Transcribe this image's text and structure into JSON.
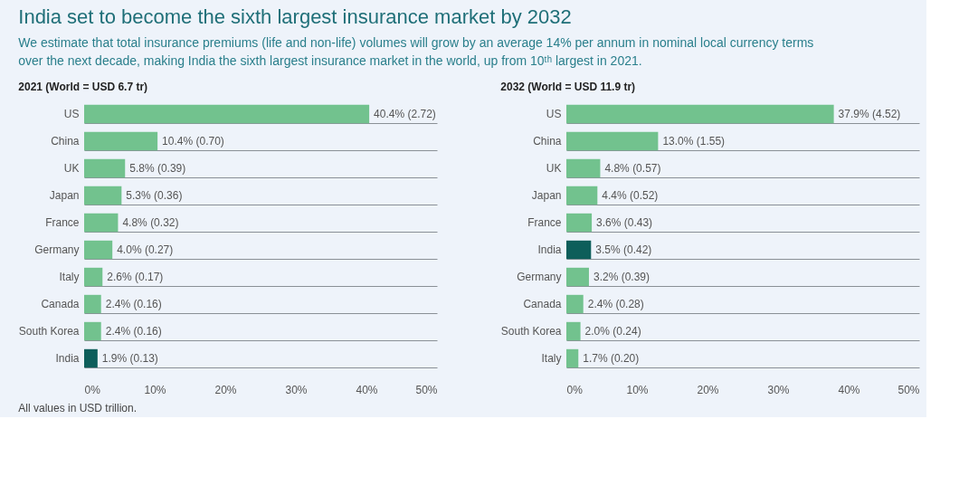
{
  "chart_data": [
    {
      "type": "bar",
      "orientation": "horizontal",
      "title": "2021 (World = USD 6.7 tr)",
      "categories": [
        "US",
        "China",
        "UK",
        "Japan",
        "France",
        "Germany",
        "Italy",
        "Canada",
        "South Korea",
        "India"
      ],
      "values": [
        40.4,
        10.4,
        5.8,
        5.3,
        4.8,
        4.0,
        2.6,
        2.4,
        2.4,
        1.9
      ],
      "colors": [
        "#72c28e",
        "#72c28e",
        "#72c28e",
        "#72c28e",
        "#72c28e",
        "#72c28e",
        "#72c28e",
        "#72c28e",
        "#72c28e",
        "#0d5e5a"
      ],
      "value_labels": [
        "40.4% (2.72)",
        "10.4% (0.70)",
        "5.8% (0.39)",
        "5.3% (0.36)",
        "4.8% (0.32)",
        "4.0% (0.27)",
        "2.6% (0.17)",
        "2.4% (0.16)",
        "2.4% (0.16)",
        "1.9% (0.13)"
      ],
      "xlim": [
        0,
        50
      ],
      "xticks": [
        {
          "value": 0,
          "label": "0%"
        },
        {
          "value": 10,
          "label": "10%"
        },
        {
          "value": 20,
          "label": "20%"
        },
        {
          "value": 30,
          "label": "30%"
        },
        {
          "value": 40,
          "label": "40%"
        },
        {
          "value": 50,
          "label": "50%"
        }
      ],
      "grid": "y",
      "annotations": [
        "India set to become the sixth largest insurance market by 2032",
        "We estimate that total insurance premiums (life and non-life) volumes will grow by an average 14% per annum in nominal local currency terms over the next decade, making India the sixth largest insurance market in the world, up from 10ᵗʰ largest in 2021.",
        "All values in USD trillion."
      ]
    },
    {
      "type": "bar",
      "orientation": "horizontal",
      "title": "2032 (World = USD 11.9 tr)",
      "categories": [
        "US",
        "China",
        "UK",
        "Japan",
        "France",
        "India",
        "Germany",
        "Canada",
        "South Korea",
        "Italy"
      ],
      "values": [
        37.9,
        13.0,
        4.8,
        4.4,
        3.6,
        3.5,
        3.2,
        2.4,
        2.0,
        1.7
      ],
      "colors": [
        "#72c28e",
        "#72c28e",
        "#72c28e",
        "#72c28e",
        "#72c28e",
        "#0d5e5a",
        "#72c28e",
        "#72c28e",
        "#72c28e",
        "#72c28e"
      ],
      "value_labels": [
        "37.9% (4.52)",
        "13.0% (1.55)",
        "4.8% (0.57)",
        "4.4% (0.52)",
        "3.6% (0.43)",
        "3.5% (0.42)",
        "3.2% (0.39)",
        "2.4% (0.28)",
        "2.0% (0.24)",
        "1.7% (0.20)"
      ],
      "xlim": [
        0,
        50
      ],
      "xticks": [
        {
          "value": 0,
          "label": "0%"
        },
        {
          "value": 10,
          "label": "10%"
        },
        {
          "value": 20,
          "label": "20%"
        },
        {
          "value": 30,
          "label": "30%"
        },
        {
          "value": 40,
          "label": "40%"
        },
        {
          "value": 50,
          "label": "50%"
        }
      ],
      "grid": "y"
    }
  ]
}
